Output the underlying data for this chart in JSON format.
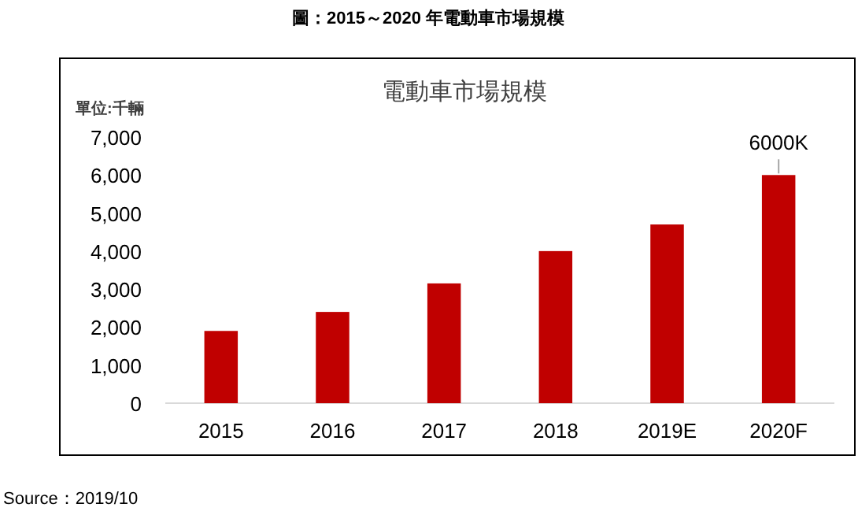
{
  "chart_data": {
    "type": "bar",
    "title": "電動車市場規模",
    "subtitle": "圖：2015～2020 年電動車市場規模",
    "ylabel": "單位:千輛",
    "categories": [
      "2015",
      "2016",
      "2017",
      "2018",
      "2019E",
      "2020F"
    ],
    "values": [
      1900,
      2400,
      3150,
      4000,
      4700,
      6000
    ],
    "color": "#c00000",
    "ylim": [
      0,
      7000
    ],
    "yticks": [
      {
        "value": 0,
        "label": "0"
      },
      {
        "value": 1000,
        "label": "1,000"
      },
      {
        "value": 2000,
        "label": "2,000"
      },
      {
        "value": 3000,
        "label": "3,000"
      },
      {
        "value": 4000,
        "label": "4,000"
      },
      {
        "value": 5000,
        "label": "5,000"
      },
      {
        "value": 6000,
        "label": "6,000"
      },
      {
        "value": 7000,
        "label": "7,000"
      }
    ],
    "grid": false,
    "annotations": [
      {
        "text": "6000K",
        "x": "2020F",
        "y": 6000
      },
      "Source：2019/10"
    ]
  }
}
